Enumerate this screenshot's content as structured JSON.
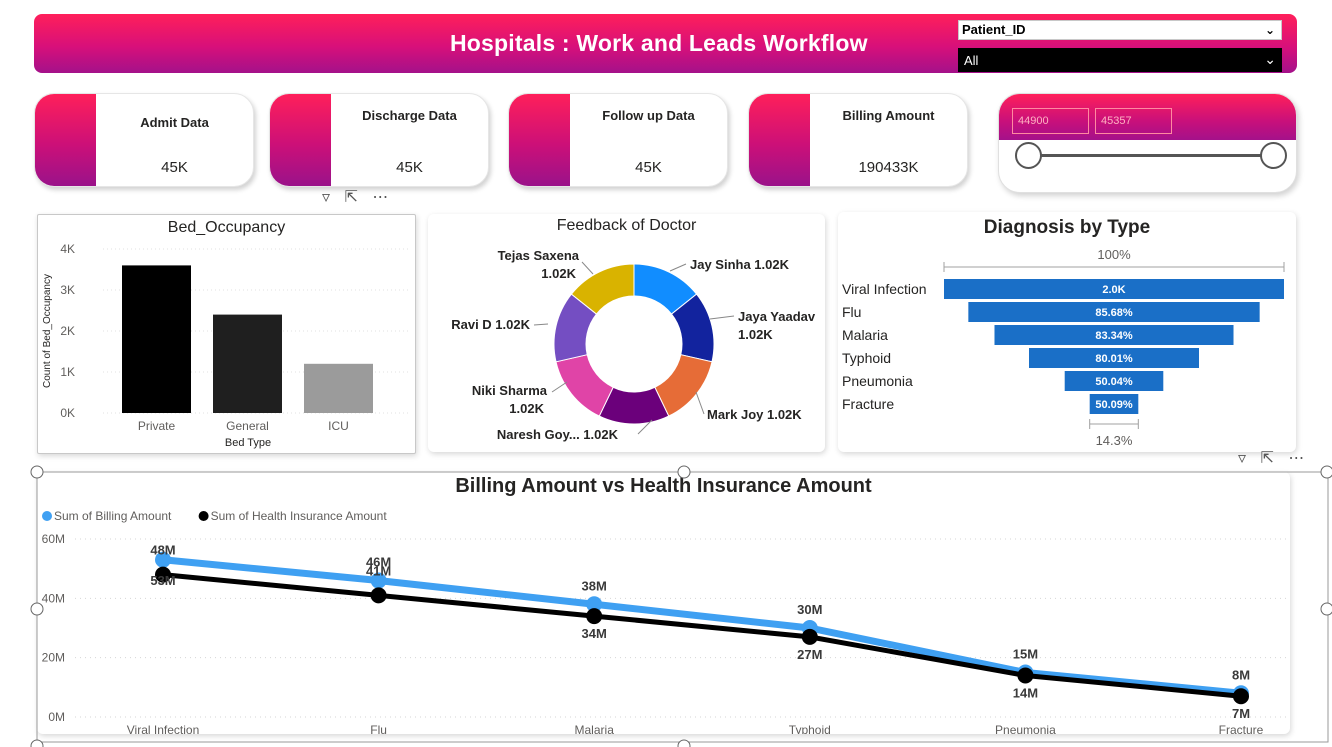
{
  "header": {
    "title": "Hospitals : Work and Leads Workflow",
    "filter_label": "Patient_ID",
    "filter_value": "All"
  },
  "kpis": [
    {
      "label": "Admit Data",
      "value": "45K"
    },
    {
      "label": "Discharge Data",
      "value": "45K"
    },
    {
      "label": "Follow up Data",
      "value": "45K"
    },
    {
      "label": "Billing Amount",
      "value": "190433K"
    }
  ],
  "range_slicer": {
    "min_value": "44900",
    "max_value": "45357"
  },
  "colors": {
    "brand_pink": "#ff1f5a",
    "brand_purple": "#a4118a",
    "billing_line": "#3fa0f2",
    "insurance_line": "#000000",
    "funnel_bar": "#1a6fc7"
  },
  "bed_chart": {
    "title": "Bed_Occupancy",
    "chart_data": {
      "type": "bar",
      "categories": [
        "Private",
        "General",
        "ICU"
      ],
      "values": [
        3600,
        2400,
        1200
      ],
      "colors": [
        "#000000",
        "#1f1f1f",
        "#9b9b9b"
      ],
      "xlabel": "Bed Type",
      "ylabel": "Count of Bed_Occupancy",
      "ylim": [
        0,
        4000
      ],
      "yticks": [
        "0K",
        "1K",
        "2K",
        "3K",
        "4K"
      ]
    }
  },
  "feedback_chart": {
    "title": "Feedback of Doctor",
    "chart_data": {
      "type": "pie",
      "slices": [
        {
          "label": "Jay Sinha 1.02K",
          "value": 1020,
          "color": "#118dff"
        },
        {
          "label": "Jaya Yaadav 1.02K",
          "value": 1020,
          "color": "#12239e"
        },
        {
          "label": "Mark Joy 1.02K",
          "value": 1020,
          "color": "#e66c37"
        },
        {
          "label": "Naresh Goy... 1.02K",
          "value": 1020,
          "color": "#6b007b"
        },
        {
          "label": "Niki Sharma 1.02K",
          "value": 1020,
          "color": "#e044a7"
        },
        {
          "label": "Ravi D 1.02K",
          "value": 1020,
          "color": "#744ec2"
        },
        {
          "label": "Tejas Saxena 1.02K",
          "value": 1020,
          "color": "#d9b300"
        }
      ]
    }
  },
  "funnel_chart": {
    "title": "Diagnosis by Type",
    "top_label": "100%",
    "bottom_label": "14.3%",
    "chart_data": {
      "type": "funnel",
      "categories": [
        "Viral Infection",
        "Flu",
        "Malaria",
        "Typhoid",
        "Pneumonia",
        "Fracture"
      ],
      "values": [
        100,
        85.68,
        70.3,
        50.0,
        29.0,
        14.3
      ],
      "data_labels": [
        "2.0K",
        "85.68%",
        "83.34%",
        "80.01%",
        "50.04%",
        "50.09%"
      ]
    }
  },
  "line_chart": {
    "title": "Billing Amount vs Health Insurance Amount",
    "chart_data": {
      "type": "line",
      "categories": [
        "Viral Infection",
        "Flu",
        "Malaria",
        "Typhoid",
        "Pneumonia",
        "Fracture"
      ],
      "ylim": [
        0,
        60
      ],
      "yticks": [
        "0M",
        "20M",
        "40M",
        "60M"
      ],
      "series": [
        {
          "name": "Sum of Billing Amount",
          "values": [
            53,
            46,
            38,
            30,
            15,
            8
          ],
          "labels": [
            "53M",
            "46M",
            "38M",
            "30M",
            "15M",
            "8M"
          ],
          "color": "#3fa0f2"
        },
        {
          "name": "Sum of Health Insurance Amount",
          "values": [
            48,
            41,
            34,
            27,
            14,
            7
          ],
          "labels": [
            "48M",
            "41M",
            "34M",
            "27M",
            "14M",
            "7M"
          ],
          "color": "#000000"
        }
      ]
    }
  }
}
